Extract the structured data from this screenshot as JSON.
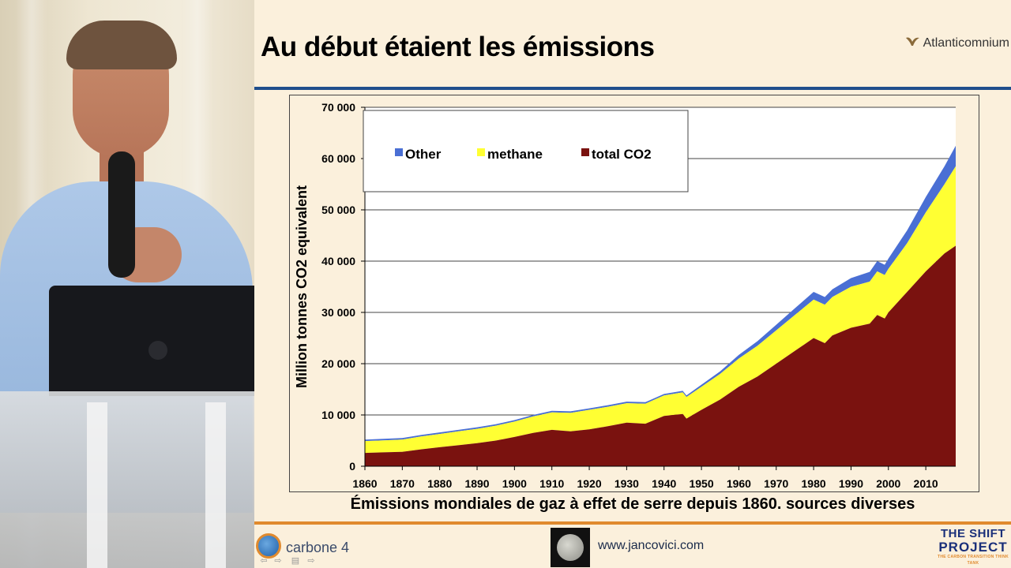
{
  "slide": {
    "title": "Au début étaient les émissions",
    "brand": "Atlanticomnium",
    "caption": "Émissions mondiales de gaz à effet de serre depuis 1860. sources diverses"
  },
  "footer": {
    "carbone_label": "carbone 4",
    "website": "www.jancovici.com",
    "shift_line1": "THE SHIFT",
    "shift_line2": "PROJECT",
    "shift_line3": "THE CARBON TRANSITION THINK TANK"
  },
  "colors": {
    "other": "#4a6fd4",
    "methane": "#ffff33",
    "co2": "#7a120f",
    "title_rule": "#1f4e8c",
    "footer_rule": "#e08a2e"
  },
  "chart_data": {
    "type": "area",
    "stacked": true,
    "ylabel": "Million tonnes CO2 equivalent",
    "ylim": [
      0,
      70000
    ],
    "yticks": [
      0,
      10000,
      20000,
      30000,
      40000,
      50000,
      60000,
      70000
    ],
    "ytick_labels": [
      "0",
      "10 000",
      "20 000",
      "30 000",
      "40 000",
      "50 000",
      "60 000",
      "70 000"
    ],
    "xlim": [
      1860,
      2018
    ],
    "xticks": [
      1860,
      1870,
      1880,
      1890,
      1900,
      1910,
      1920,
      1930,
      1940,
      1950,
      1960,
      1970,
      1980,
      1990,
      2000,
      2010
    ],
    "xtick_labels": [
      "1860",
      "1870",
      "1880",
      "1890",
      "1900",
      "1910",
      "1920",
      "1930",
      "1940",
      "1950",
      "1960",
      "1970",
      "1980",
      "1990",
      "2000",
      "2010"
    ],
    "grid": "horizontal",
    "legend_position": "top-left",
    "x": [
      1860,
      1865,
      1870,
      1875,
      1880,
      1885,
      1890,
      1895,
      1900,
      1905,
      1910,
      1915,
      1920,
      1925,
      1930,
      1935,
      1940,
      1945,
      1946,
      1950,
      1955,
      1960,
      1965,
      1970,
      1975,
      1980,
      1983,
      1985,
      1990,
      1995,
      1997,
      1999,
      2000,
      2005,
      2010,
      2015,
      2018
    ],
    "series": [
      {
        "name": "total CO2",
        "values": [
          2600,
          2700,
          2800,
          3300,
          3700,
          4100,
          4500,
          5000,
          5700,
          6500,
          7100,
          6800,
          7200,
          7800,
          8500,
          8300,
          9800,
          10200,
          9300,
          11000,
          13000,
          15500,
          17500,
          20000,
          22500,
          25000,
          24000,
          25500,
          27000,
          27800,
          29500,
          28800,
          30000,
          34000,
          38000,
          41500,
          43000
        ]
      },
      {
        "name": "methane",
        "values": [
          2300,
          2350,
          2400,
          2500,
          2600,
          2700,
          2800,
          2900,
          3000,
          3200,
          3400,
          3600,
          3800,
          3800,
          3800,
          3900,
          4000,
          4200,
          4200,
          4500,
          5000,
          5500,
          6000,
          6500,
          7000,
          7500,
          7500,
          7500,
          8000,
          8200,
          8500,
          8500,
          8500,
          9500,
          11500,
          13500,
          15500
        ]
      },
      {
        "name": "Other",
        "values": [
          300,
          300,
          300,
          300,
          300,
          300,
          300,
          300,
          300,
          300,
          300,
          300,
          300,
          300,
          300,
          300,
          300,
          300,
          300,
          400,
          500,
          700,
          900,
          1100,
          1300,
          1500,
          1500,
          1500,
          1700,
          1900,
          2000,
          2000,
          2000,
          2500,
          3000,
          3500,
          4000
        ]
      }
    ]
  }
}
